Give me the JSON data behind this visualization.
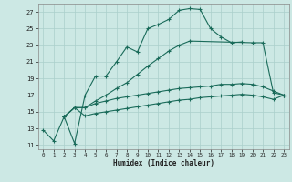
{
  "xlabel": "Humidex (Indice chaleur)",
  "bg_color": "#cce8e4",
  "grid_color": "#aacfcb",
  "line_color": "#1a6b5a",
  "xlim": [
    -0.5,
    23.5
  ],
  "ylim": [
    10.5,
    28.0
  ],
  "yticks": [
    11,
    13,
    15,
    17,
    19,
    21,
    23,
    25,
    27
  ],
  "xticks": [
    0,
    1,
    2,
    3,
    4,
    5,
    6,
    7,
    8,
    9,
    10,
    11,
    12,
    13,
    14,
    15,
    16,
    17,
    18,
    19,
    20,
    21,
    22,
    23
  ],
  "line1_x": [
    0,
    1,
    2,
    3,
    4,
    5,
    6,
    7,
    8,
    9,
    10,
    11,
    12,
    13,
    14,
    15,
    16,
    17,
    18,
    19
  ],
  "line1_y": [
    12.8,
    11.5,
    14.4,
    11.2,
    17.0,
    19.3,
    19.3,
    21.0,
    22.8,
    22.2,
    25.0,
    25.5,
    26.1,
    27.2,
    27.4,
    27.3,
    25.0,
    24.0,
    23.3,
    23.4
  ],
  "line2_x": [
    2,
    3,
    4,
    5,
    6,
    7,
    8,
    9,
    10,
    11,
    12,
    13,
    14,
    20,
    21,
    22,
    23
  ],
  "line2_y": [
    14.4,
    15.5,
    15.5,
    16.3,
    17.0,
    17.8,
    18.5,
    19.5,
    20.5,
    21.4,
    22.3,
    23.0,
    23.5,
    23.3,
    23.3,
    17.3,
    17.0
  ],
  "line3_x": [
    2,
    3,
    4,
    5,
    6,
    7,
    8,
    9,
    10,
    11,
    12,
    13,
    14,
    15,
    16,
    17,
    18,
    19,
    20,
    21,
    22,
    23
  ],
  "line3_y": [
    14.4,
    15.5,
    15.5,
    16.0,
    16.3,
    16.6,
    16.8,
    17.0,
    17.2,
    17.4,
    17.6,
    17.8,
    17.9,
    18.0,
    18.1,
    18.3,
    18.3,
    18.4,
    18.3,
    18.0,
    17.5,
    17.0
  ],
  "line4_x": [
    2,
    3,
    4,
    5,
    6,
    7,
    8,
    9,
    10,
    11,
    12,
    13,
    14,
    15,
    16,
    17,
    18,
    19,
    20,
    21,
    22,
    23
  ],
  "line4_y": [
    14.4,
    15.5,
    14.5,
    14.8,
    15.0,
    15.2,
    15.4,
    15.6,
    15.8,
    16.0,
    16.2,
    16.4,
    16.5,
    16.7,
    16.8,
    16.9,
    17.0,
    17.1,
    17.0,
    16.8,
    16.5,
    17.0
  ]
}
